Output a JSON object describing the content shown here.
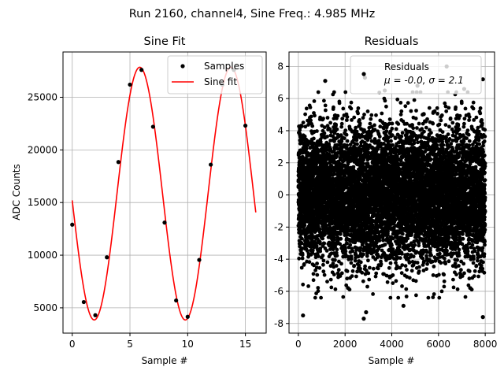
{
  "suptitle": "Run 2160, channel4, Sine Freq.: 4.985 MHz",
  "chart_data": [
    {
      "type": "line",
      "title": "Sine Fit",
      "xlabel": "Sample #",
      "ylabel": "ADC Counts",
      "xlim": [
        -0.8,
        16.8
      ],
      "ylim": [
        2600,
        29300
      ],
      "xticks": [
        0,
        5,
        10,
        15
      ],
      "yticks": [
        5000,
        10000,
        15000,
        20000,
        25000
      ],
      "grid": true,
      "legend": "top-right",
      "fit": {
        "amplitude": 12000,
        "offset": 15850,
        "period": 7.89,
        "phase_sample": 5.85,
        "x_range": [
          0,
          15.9
        ]
      },
      "series": [
        {
          "name": "Samples",
          "style": "markers",
          "color": "#000000",
          "x": [
            0,
            1,
            2,
            3,
            4,
            5,
            6,
            7,
            8,
            9,
            10,
            11,
            12,
            13,
            14,
            15
          ],
          "y": [
            12900,
            5550,
            4300,
            9800,
            18850,
            26200,
            27600,
            22200,
            13100,
            5700,
            4150,
            9550,
            18600,
            26200,
            27600,
            22300
          ]
        },
        {
          "name": "Sine fit",
          "style": "line",
          "color": "#ff0000"
        }
      ]
    },
    {
      "type": "scatter",
      "title": "Residuals",
      "xlabel": "Sample #",
      "ylabel": "",
      "xlim": [
        -400,
        8400
      ],
      "ylim": [
        -8.6,
        8.9
      ],
      "xticks": [
        0,
        2000,
        4000,
        6000,
        8000
      ],
      "yticks": [
        -8,
        -6,
        -4,
        -2,
        0,
        2,
        4,
        6,
        8
      ],
      "grid": true,
      "legend": "top-right",
      "series": [
        {
          "name": "Residuals",
          "legend_line2": "μ = -0.0, σ = 2.1",
          "color": "#000000",
          "n_points": 8000,
          "x_range": [
            0,
            7999
          ],
          "mean": 0.0,
          "std": 2.1,
          "outliers": [
            {
              "x": 200,
              "y": -7.5
            },
            {
              "x": 1150,
              "y": 7.1
            },
            {
              "x": 2800,
              "y": -7.7
            },
            {
              "x": 2900,
              "y": -7.3
            },
            {
              "x": 2850,
              "y": 7.3
            },
            {
              "x": 3700,
              "y": 6.5
            },
            {
              "x": 4500,
              "y": -6.9
            },
            {
              "x": 6350,
              "y": 8.0
            },
            {
              "x": 7900,
              "y": -7.6
            },
            {
              "x": 7900,
              "y": 7.2
            },
            {
              "x": 5100,
              "y": 6.8
            },
            {
              "x": 7100,
              "y": 6.6
            }
          ]
        }
      ]
    }
  ]
}
